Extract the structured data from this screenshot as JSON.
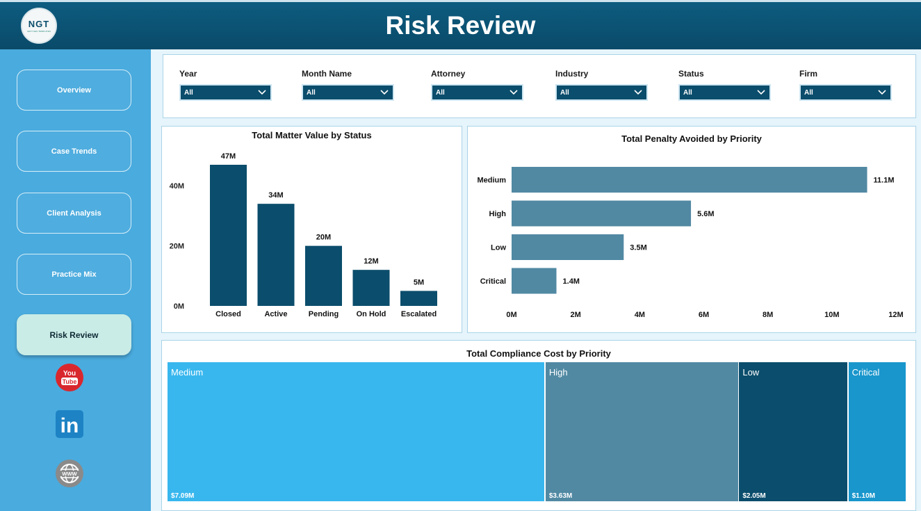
{
  "header": {
    "title": "Risk Review",
    "logo_text": "NGT",
    "logo_sub": "NEXT GEN TEMPLATES"
  },
  "nav": {
    "items": [
      {
        "label": "Overview",
        "active": false
      },
      {
        "label": "Case Trends",
        "active": false
      },
      {
        "label": "Client Analysis",
        "active": false
      },
      {
        "label": "Practice Mix",
        "active": false
      },
      {
        "label": "Risk Review",
        "active": true
      }
    ]
  },
  "social": {
    "icons": [
      "youtube-icon",
      "linkedin-icon",
      "website-icon"
    ],
    "youtube_line1": "You",
    "youtube_line2": "Tube",
    "linkedin_text": "in",
    "web_text": "WWW"
  },
  "filters": [
    {
      "label": "Year",
      "value": "All"
    },
    {
      "label": "Month Name",
      "value": "All"
    },
    {
      "label": "Attorney",
      "value": "All"
    },
    {
      "label": "Industry",
      "value": "All"
    },
    {
      "label": "Status",
      "value": "All"
    },
    {
      "label": "Firm",
      "value": "All"
    }
  ],
  "colors": {
    "header": "#0b4d6c",
    "sidebar": "#4aabde",
    "bar_dark": "#0b4d6c",
    "bar_mid": "#5189a3",
    "accent_light": "#38b7ee",
    "accent_blue": "#1996cc"
  },
  "chart_data": [
    {
      "type": "bar",
      "title": "Total Matter Value by Status",
      "categories": [
        "Closed",
        "Active",
        "Pending",
        "On Hold",
        "Escalated"
      ],
      "values": [
        47,
        34,
        20,
        12,
        5
      ],
      "data_labels": [
        "47M",
        "34M",
        "20M",
        "12M",
        "5M"
      ],
      "y_ticks": [
        "0M",
        "20M",
        "40M"
      ],
      "y_tick_values": [
        0,
        20,
        40
      ],
      "ylim": [
        0,
        47
      ],
      "grid": false
    },
    {
      "type": "bar",
      "orientation": "horizontal",
      "title": "Total Penalty Avoided by Priority",
      "categories": [
        "Medium",
        "High",
        "Low",
        "Critical"
      ],
      "values": [
        11.1,
        5.6,
        3.5,
        1.4
      ],
      "data_labels": [
        "11.1M",
        "5.6M",
        "3.5M",
        "1.4M"
      ],
      "x_ticks": [
        "0M",
        "2M",
        "4M",
        "6M",
        "8M",
        "10M",
        "12M"
      ],
      "x_tick_values": [
        0,
        2,
        4,
        6,
        8,
        10,
        12
      ],
      "xlim": [
        0,
        12
      ],
      "grid": false
    },
    {
      "type": "treemap",
      "title": "Total Compliance Cost by Priority",
      "categories": [
        "Medium",
        "High",
        "Low",
        "Critical"
      ],
      "values": [
        7.09,
        3.63,
        2.05,
        1.1
      ],
      "data_labels": [
        "$7.09M",
        "$3.63M",
        "$2.05M",
        "$1.10M"
      ],
      "colors": [
        "#38b7ee",
        "#5189a3",
        "#0b4d6c",
        "#1996cc"
      ]
    }
  ]
}
